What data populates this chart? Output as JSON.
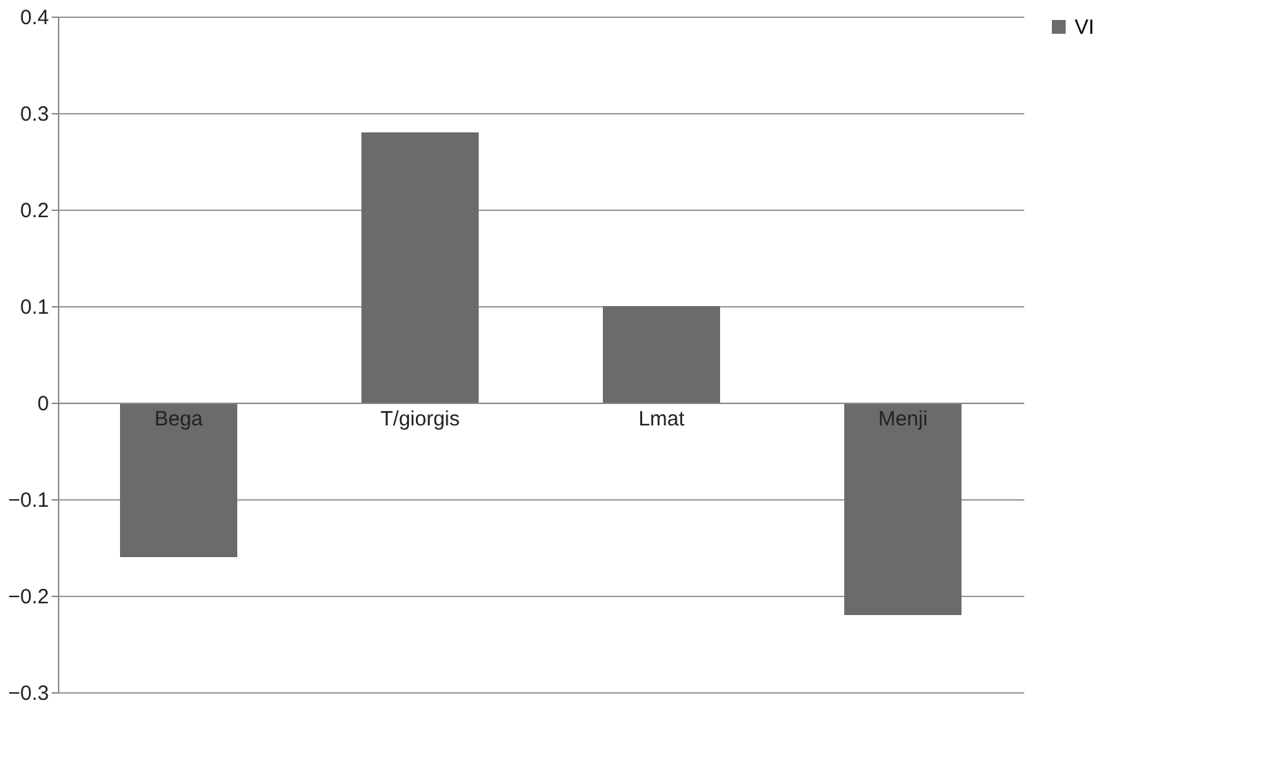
{
  "chart_data": {
    "type": "bar",
    "categories": [
      "Bega",
      "T/giorgis",
      "Lmat",
      "Menji"
    ],
    "series": [
      {
        "name": "VI",
        "color": "#6b6b6b",
        "values": [
          -0.16,
          0.28,
          0.1,
          -0.22
        ]
      }
    ],
    "ylim": [
      -0.3,
      0.4
    ],
    "yticks": [
      -0.3,
      -0.2,
      -0.1,
      0,
      0.1,
      0.2,
      0.3,
      0.4
    ],
    "grid": "y",
    "legend": "right"
  }
}
